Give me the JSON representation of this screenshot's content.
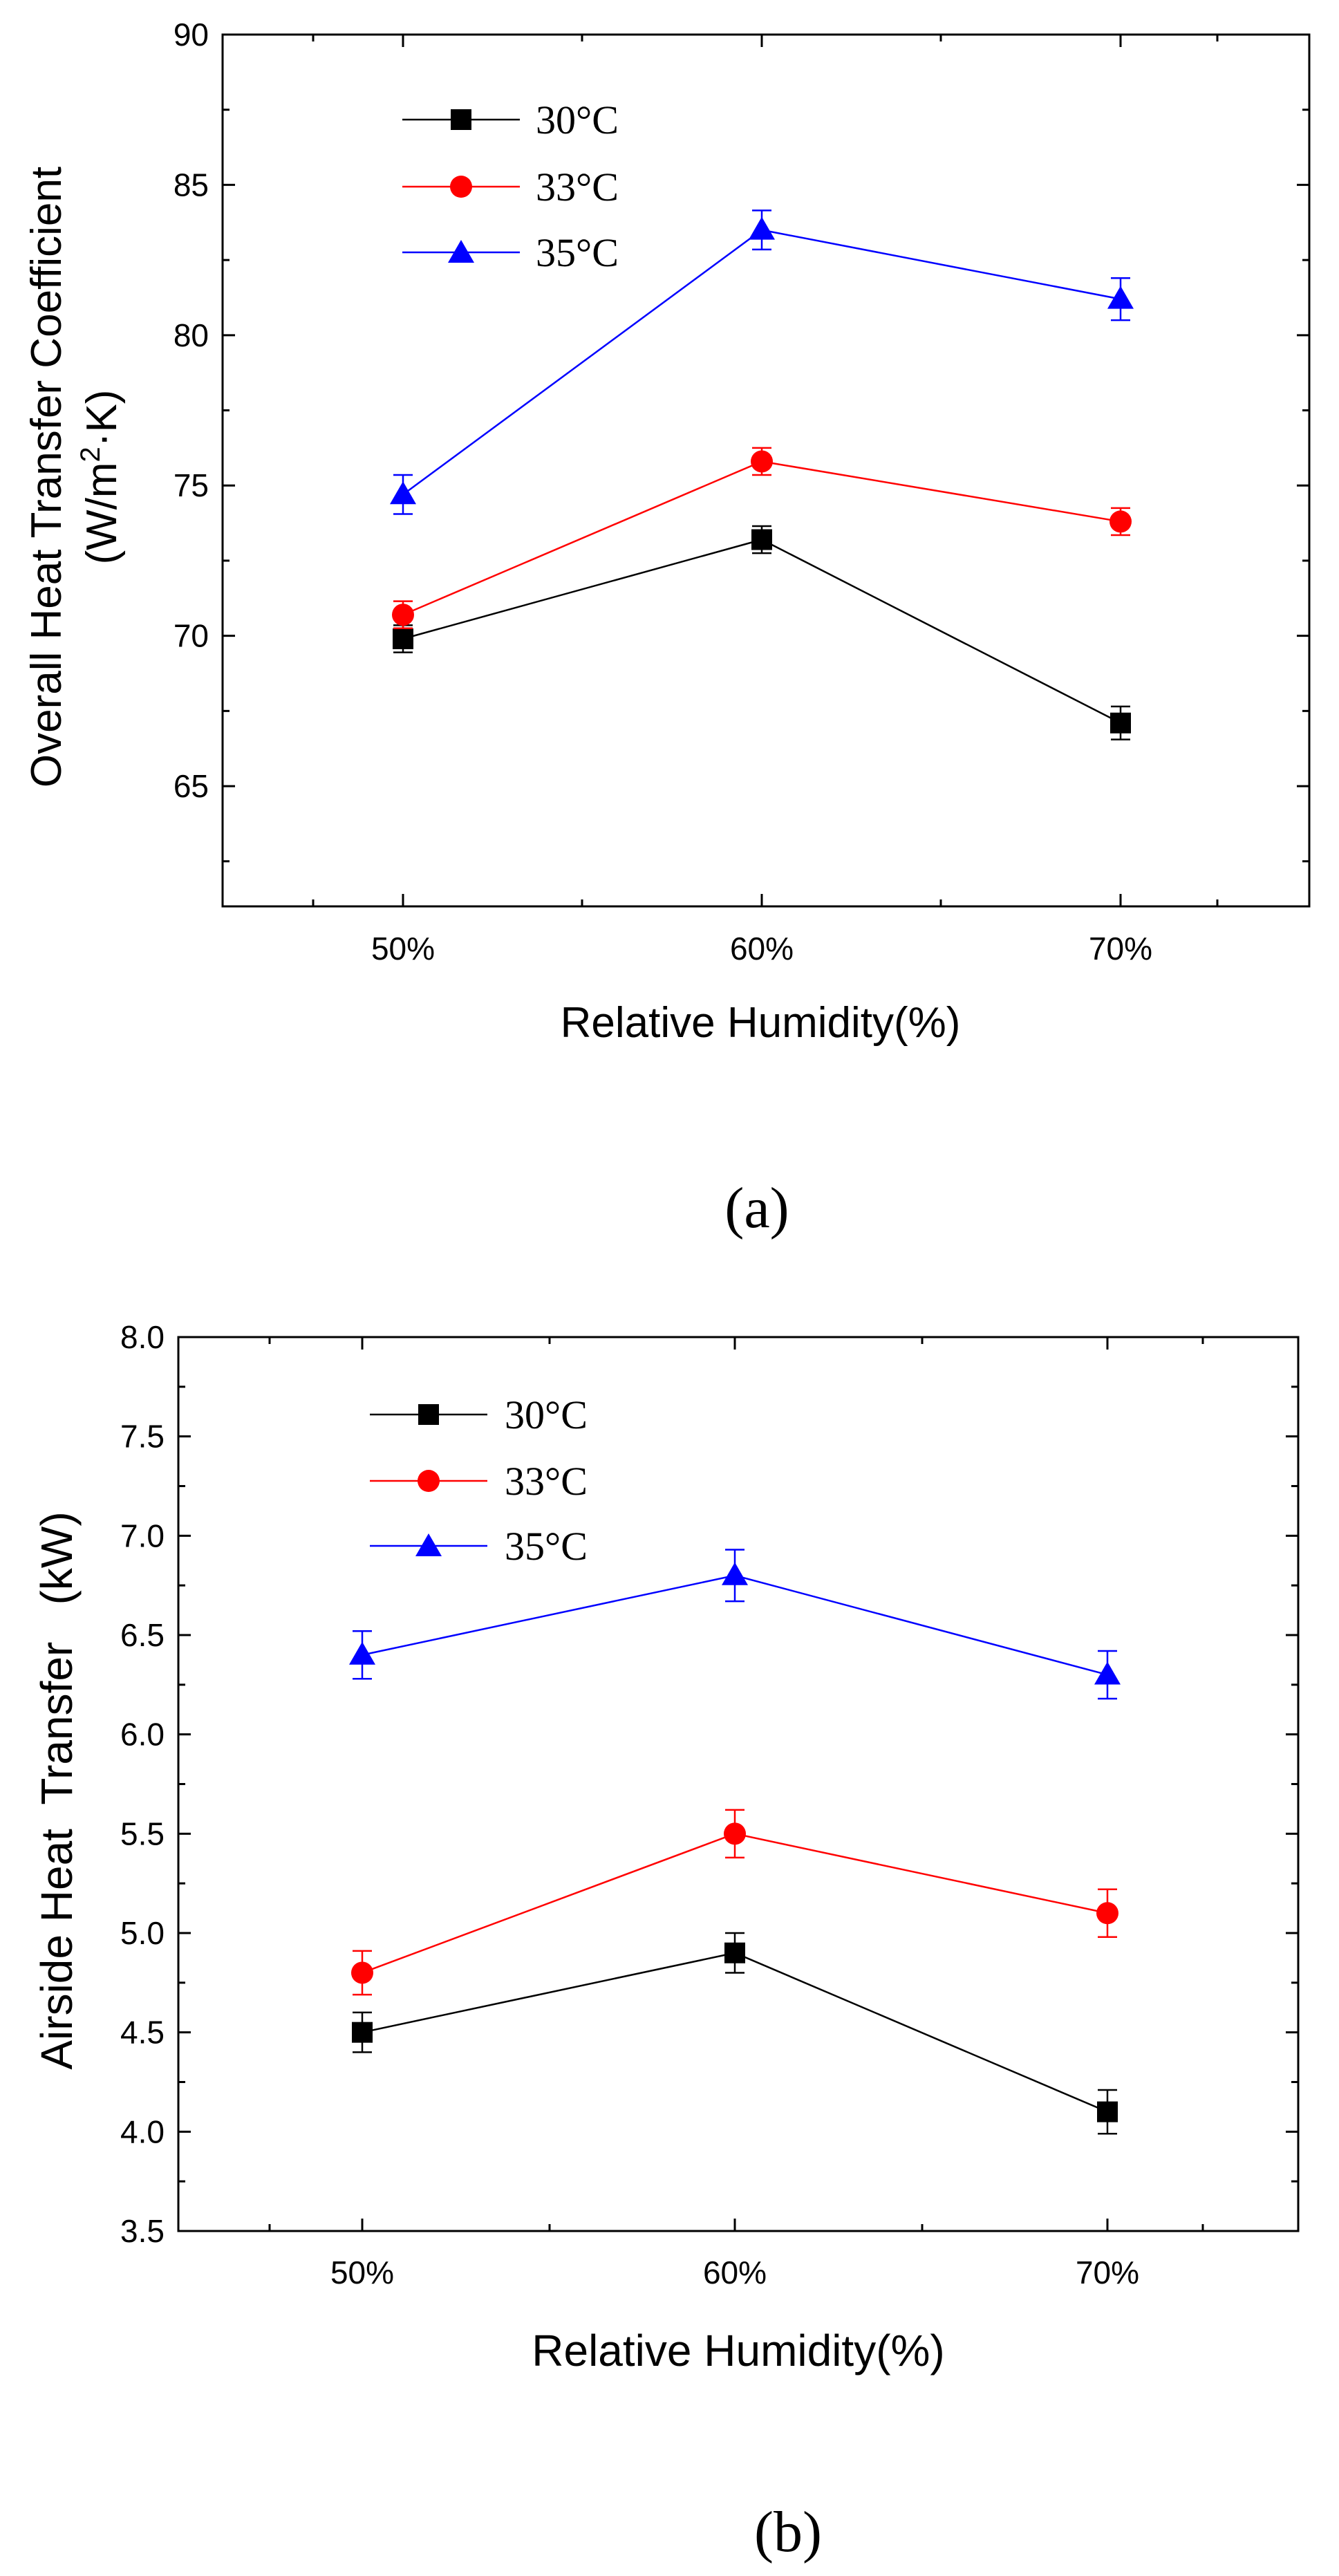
{
  "colors": {
    "s30": "#000000",
    "s33": "#ff0000",
    "s35": "#0000ff",
    "axis": "#000000"
  },
  "chart_data": [
    {
      "id": "a",
      "type": "line",
      "caption": "(a)",
      "xlabel": "Relative Humidity(%)",
      "ylabel_line1": "Overall Heat Transfer Coefficient",
      "ylabel_line2_pre": "(W/m",
      "ylabel_line2_sup": "2",
      "ylabel_line2_post": "·K)",
      "categories": [
        "50%",
        "60%",
        "70%"
      ],
      "ylim": [
        61,
        90
      ],
      "yticks": [
        65,
        70,
        75,
        80,
        85,
        90
      ],
      "series": [
        {
          "name": "30°C",
          "marker": "square",
          "color": "#000000",
          "values": [
            69.9,
            73.2,
            67.1
          ],
          "errors": [
            0.45,
            0.45,
            0.55
          ]
        },
        {
          "name": "33°C",
          "marker": "circle",
          "color": "#ff0000",
          "values": [
            70.7,
            75.8,
            73.8
          ],
          "errors": [
            0.45,
            0.45,
            0.45
          ]
        },
        {
          "name": "35°C",
          "marker": "triangle",
          "color": "#0000ff",
          "values": [
            74.7,
            83.5,
            81.2
          ],
          "errors": [
            0.65,
            0.65,
            0.7
          ]
        }
      ]
    },
    {
      "id": "b",
      "type": "line",
      "caption": "(b)",
      "xlabel": "Relative Humidity(%)",
      "ylabel": "Airside Heat  Transfer   (kW)",
      "categories": [
        "50%",
        "60%",
        "70%"
      ],
      "ylim": [
        3.5,
        8.0
      ],
      "yticks": [
        3.5,
        4.0,
        4.5,
        5.0,
        5.5,
        6.0,
        6.5,
        7.0,
        7.5,
        8.0
      ],
      "series": [
        {
          "name": "30°C",
          "marker": "square",
          "color": "#000000",
          "values": [
            4.5,
            4.9,
            4.1
          ],
          "errors": [
            0.1,
            0.1,
            0.11
          ]
        },
        {
          "name": "33°C",
          "marker": "circle",
          "color": "#ff0000",
          "values": [
            4.8,
            5.5,
            5.1
          ],
          "errors": [
            0.11,
            0.12,
            0.12
          ]
        },
        {
          "name": "35°C",
          "marker": "triangle",
          "color": "#0000ff",
          "values": [
            6.4,
            6.8,
            6.3
          ],
          "errors": [
            0.12,
            0.13,
            0.12
          ]
        }
      ]
    }
  ]
}
